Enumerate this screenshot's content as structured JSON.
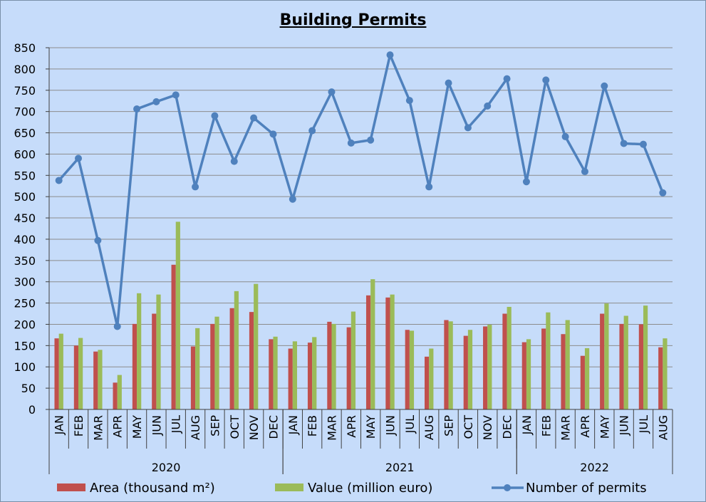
{
  "chart_data": {
    "type": "bar",
    "title": "Building Permits",
    "xlabel": "",
    "ylabel": "",
    "ylim": [
      0,
      850
    ],
    "yticks": [
      0,
      50,
      100,
      150,
      200,
      250,
      300,
      350,
      400,
      450,
      500,
      550,
      600,
      650,
      700,
      750,
      800,
      850
    ],
    "grid": true,
    "legend_position": "bottom",
    "categories": [
      "JAN",
      "FEB",
      "MAR",
      "APR",
      "MAY",
      "JUN",
      "JUL",
      "AUG",
      "SEP",
      "OCT",
      "NOV",
      "DEC",
      "JAN",
      "FEB",
      "MAR",
      "APR",
      "MAY",
      "JUN",
      "JUL",
      "AUG",
      "SEP",
      "OCT",
      "NOV",
      "DEC",
      "JAN",
      "FEB",
      "MAR",
      "APR",
      "MAY",
      "JUN",
      "JUL",
      "AUG"
    ],
    "groups": [
      {
        "label": "2020",
        "count": 12
      },
      {
        "label": "2021",
        "count": 12
      },
      {
        "label": "2022",
        "count": 8
      }
    ],
    "series": [
      {
        "name": "Area (thousand m²)",
        "type": "bar",
        "color": "#c0504d",
        "values": [
          167,
          150,
          136,
          63,
          201,
          225,
          340,
          148,
          201,
          238,
          229,
          165,
          143,
          157,
          206,
          193,
          268,
          263,
          187,
          124,
          210,
          173,
          195,
          225,
          158,
          190,
          177,
          126,
          225,
          201,
          200,
          146
        ]
      },
      {
        "name": "Value (million euro)",
        "type": "bar",
        "color": "#9bbb59",
        "values": [
          178,
          168,
          140,
          81,
          273,
          270,
          441,
          191,
          218,
          278,
          295,
          171,
          160,
          170,
          201,
          230,
          306,
          270,
          185,
          143,
          207,
          187,
          199,
          241,
          165,
          228,
          210,
          144,
          249,
          220,
          244,
          167
        ]
      },
      {
        "name": "Number of permits",
        "type": "line",
        "color": "#4f81bd",
        "values": [
          538,
          590,
          397,
          195,
          706,
          723,
          739,
          523,
          690,
          583,
          685,
          647,
          494,
          655,
          746,
          626,
          633,
          833,
          726,
          523,
          767,
          662,
          713,
          777,
          535,
          774,
          641,
          559,
          760,
          625,
          623,
          509
        ]
      }
    ]
  }
}
